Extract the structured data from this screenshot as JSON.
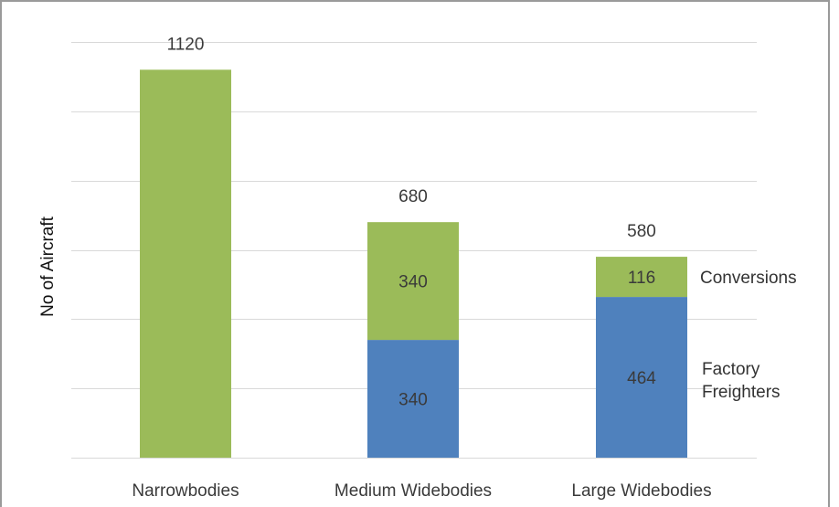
{
  "chart_data": {
    "type": "bar",
    "stacked": true,
    "categories": [
      "Narrowbodies",
      "Medium Widebodies",
      "Large Widebodies"
    ],
    "series": [
      {
        "name": "Factory Freighters",
        "values": [
          0,
          340,
          464
        ],
        "color": "#4f81bd"
      },
      {
        "name": "Conversions",
        "values": [
          1120,
          340,
          116
        ],
        "color": "#9bbb59"
      }
    ],
    "totals": [
      1120,
      680,
      580
    ],
    "segment_labels": [
      {
        "category": 1,
        "series": 0,
        "text": "340"
      },
      {
        "category": 1,
        "series": 1,
        "text": "340"
      },
      {
        "category": 2,
        "series": 0,
        "text": "464"
      },
      {
        "category": 2,
        "series": 1,
        "text": "116"
      }
    ],
    "title": "",
    "xlabel": "",
    "ylabel": "No of Aircraft",
    "ylim": [
      0,
      1200
    ],
    "y_gridline_step": 200,
    "y_tick_labels_shown": false,
    "grid": true,
    "legend": "inline labels right of last bar"
  }
}
